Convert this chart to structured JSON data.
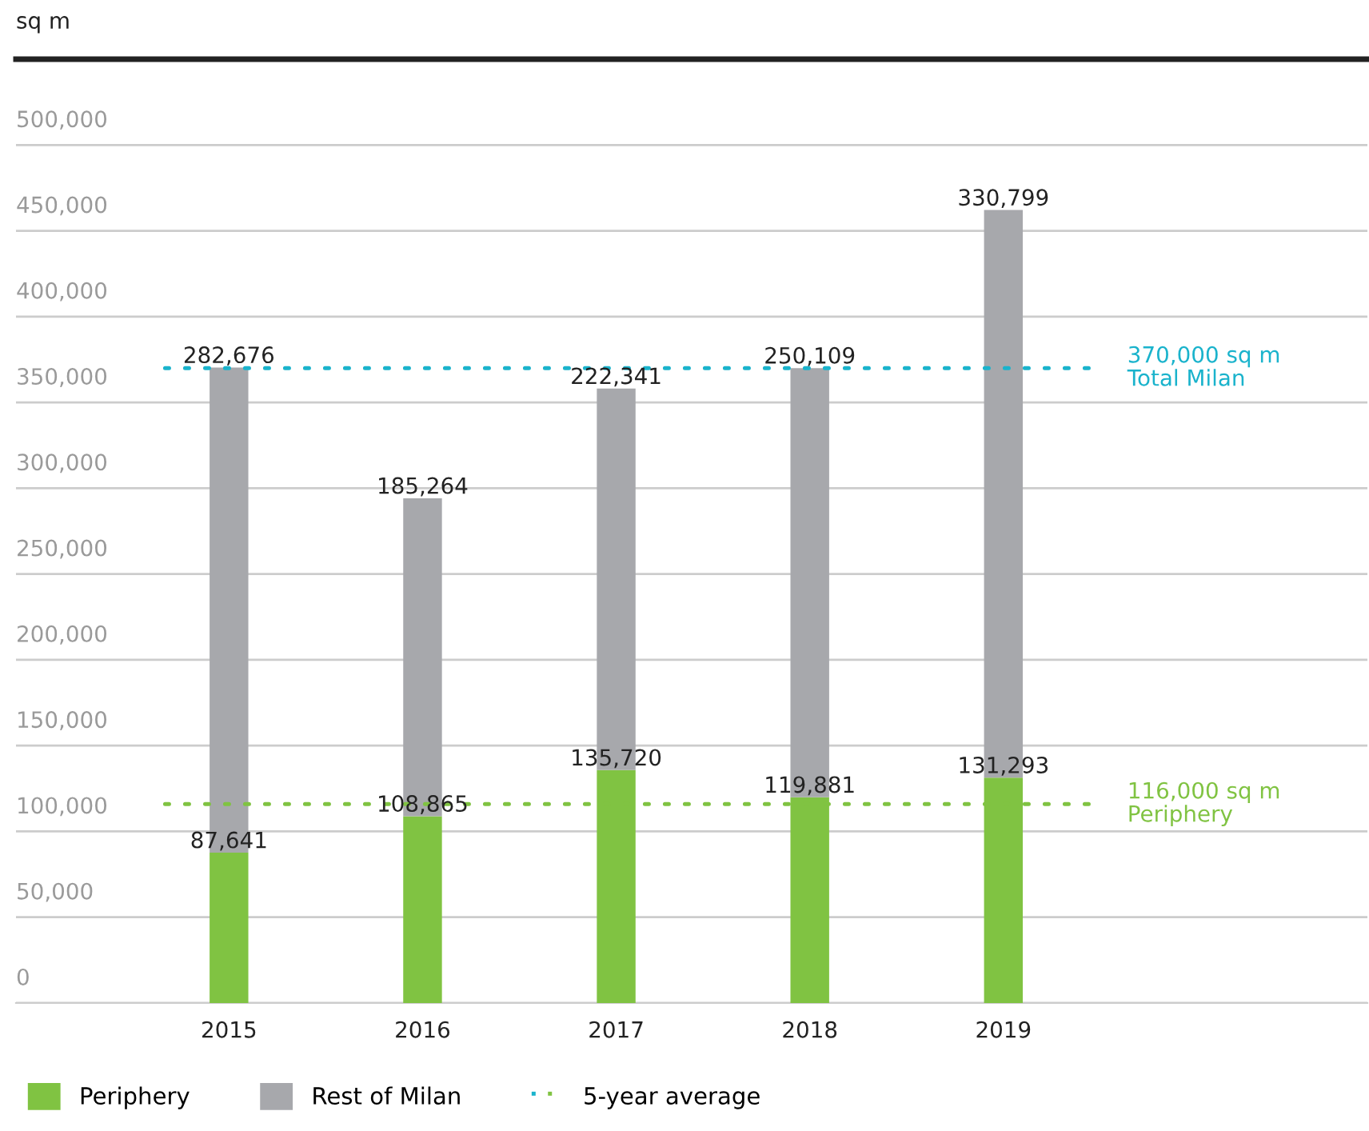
{
  "chart_data": {
    "type": "bar",
    "stacked": true,
    "ylabel": "sq m",
    "categories": [
      "2015",
      "2016",
      "2017",
      "2018",
      "2019"
    ],
    "series": [
      {
        "name": "Periphery",
        "color": "#80c342",
        "values": [
          87641,
          108865,
          135720,
          119881,
          131293
        ],
        "value_labels": [
          "87,641",
          "108,865",
          "135,720",
          "119,881",
          "131,293"
        ]
      },
      {
        "name": "Rest of Milan",
        "color": "#a7a8ac",
        "values": [
          282676,
          185264,
          222341,
          250109,
          330799
        ],
        "value_labels": [
          "282,676",
          "185,264",
          "222,341",
          "250,109",
          "330,799"
        ]
      }
    ],
    "ylim": [
      0,
      550000
    ],
    "yticks": [
      {
        "value": 0,
        "label": "0"
      },
      {
        "value": 50000,
        "label": "50,000"
      },
      {
        "value": 100000,
        "label": "100,000"
      },
      {
        "value": 150000,
        "label": "150,000"
      },
      {
        "value": 200000,
        "label": "200,000"
      },
      {
        "value": 250000,
        "label": "250,000"
      },
      {
        "value": 300000,
        "label": "300,000"
      },
      {
        "value": 350000,
        "label": "350,000"
      },
      {
        "value": 400000,
        "label": "400,000"
      },
      {
        "value": 450000,
        "label": "450,000"
      },
      {
        "value": 500000,
        "label": "500,000"
      }
    ],
    "ref_lines": [
      {
        "axis": "y",
        "value": 370000,
        "label": "370,000 sq m\nTotal Milan",
        "color": "#1ab3cc",
        "line_style": "dotted"
      },
      {
        "axis": "y",
        "value": 116000,
        "label": "116,000 sq m\nPeriphery",
        "color": "#80c342",
        "line_style": "dotted"
      }
    ],
    "annotations": [
      "5-year average"
    ],
    "grid": "y",
    "legend": "bottom"
  }
}
